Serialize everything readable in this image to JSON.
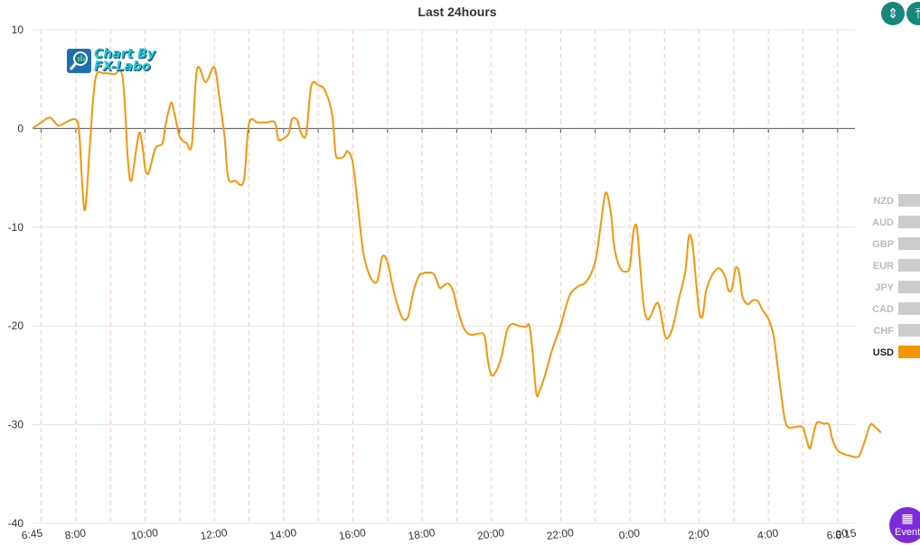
{
  "toolbar": {
    "buttons": [
      {
        "icon": "expand-vertical-icon"
      },
      {
        "icon": "fit-height-icon"
      }
    ]
  },
  "logo": {
    "line1": "Chart By",
    "line2": "FX-Labo"
  },
  "event_button": {
    "label": "Event",
    "icon": "calendar-icon"
  },
  "chart_data": {
    "type": "line",
    "title": "Last 24hours",
    "xlabel": "",
    "ylabel": "",
    "ylim": [
      -40,
      10
    ],
    "yticks": [
      10,
      0,
      -10,
      -20,
      -30,
      -40
    ],
    "xlim": [
      6.75,
      30.5
    ],
    "xticks": [
      {
        "label": "6:45",
        "x": 6.75
      },
      {
        "label": "8:00",
        "x": 8.0
      },
      {
        "label": "10:00",
        "x": 10.0
      },
      {
        "label": "12:00",
        "x": 12.0
      },
      {
        "label": "14:00",
        "x": 14.0
      },
      {
        "label": "16:00",
        "x": 16.0
      },
      {
        "label": "18:00",
        "x": 18.0
      },
      {
        "label": "20:00",
        "x": 20.0
      },
      {
        "label": "22:00",
        "x": 22.0
      },
      {
        "label": "0:00",
        "x": 24.0
      },
      {
        "label": "2:00",
        "x": 26.0
      },
      {
        "label": "4:00",
        "x": 28.0
      },
      {
        "label": "6:00",
        "x": 30.0
      },
      {
        "label": "6:15",
        "x": 30.25
      }
    ],
    "grid": true,
    "legend": {
      "placement": "right",
      "items": [
        {
          "name": "NZD",
          "color": "#cccccc",
          "active": false
        },
        {
          "name": "AUD",
          "color": "#cccccc",
          "active": false
        },
        {
          "name": "GBP",
          "color": "#cccccc",
          "active": false
        },
        {
          "name": "EUR",
          "color": "#cccccc",
          "active": false
        },
        {
          "name": "JPY",
          "color": "#cccccc",
          "active": false
        },
        {
          "name": "CAD",
          "color": "#cccccc",
          "active": false
        },
        {
          "name": "CHF",
          "color": "#cccccc",
          "active": false
        },
        {
          "name": "USD",
          "color": "#f5960a",
          "active": true
        }
      ]
    },
    "series": [
      {
        "name": "USD",
        "color": "#f5960a",
        "points": [
          [
            6.75,
            0
          ],
          [
            7.0,
            0.6
          ],
          [
            7.25,
            1.1
          ],
          [
            7.5,
            0.3
          ],
          [
            7.75,
            0.7
          ],
          [
            8.0,
            0.9
          ],
          [
            8.1,
            -0.5
          ],
          [
            8.25,
            -8.3
          ],
          [
            8.4,
            -2.0
          ],
          [
            8.5,
            3.0
          ],
          [
            8.6,
            5.5
          ],
          [
            8.8,
            5.6
          ],
          [
            9.1,
            5.5
          ],
          [
            9.35,
            5.2
          ],
          [
            9.5,
            -3.0
          ],
          [
            9.6,
            -5.3
          ],
          [
            9.75,
            -2.0
          ],
          [
            9.85,
            -0.4
          ],
          [
            9.95,
            -2.5
          ],
          [
            10.0,
            -4.0
          ],
          [
            10.1,
            -4.5
          ],
          [
            10.3,
            -2.0
          ],
          [
            10.5,
            -1.5
          ],
          [
            10.6,
            0.5
          ],
          [
            10.75,
            2.6
          ],
          [
            10.85,
            1.5
          ],
          [
            11.0,
            -0.8
          ],
          [
            11.2,
            -1.5
          ],
          [
            11.35,
            -1.6
          ],
          [
            11.5,
            6.0
          ],
          [
            11.75,
            4.7
          ],
          [
            12.0,
            6.2
          ],
          [
            12.15,
            3.0
          ],
          [
            12.3,
            -1.0
          ],
          [
            12.4,
            -5.0
          ],
          [
            12.6,
            -5.3
          ],
          [
            12.85,
            -5.3
          ],
          [
            13.0,
            0.5
          ],
          [
            13.25,
            0.6
          ],
          [
            13.5,
            0.6
          ],
          [
            13.75,
            0.6
          ],
          [
            13.85,
            -1.1
          ],
          [
            14.0,
            -1.0
          ],
          [
            14.15,
            -0.5
          ],
          [
            14.25,
            1.0
          ],
          [
            14.4,
            0.8
          ],
          [
            14.5,
            -0.4
          ],
          [
            14.65,
            -0.6
          ],
          [
            14.8,
            4.3
          ],
          [
            15.0,
            4.4
          ],
          [
            15.2,
            3.8
          ],
          [
            15.4,
            1.5
          ],
          [
            15.5,
            -2.5
          ],
          [
            15.6,
            -3.0
          ],
          [
            15.75,
            -2.8
          ],
          [
            15.85,
            -2.3
          ],
          [
            16.0,
            -3.5
          ],
          [
            16.15,
            -8.0
          ],
          [
            16.3,
            -12.5
          ],
          [
            16.5,
            -15.0
          ],
          [
            16.7,
            -15.5
          ],
          [
            16.85,
            -13.0
          ],
          [
            17.0,
            -13.5
          ],
          [
            17.15,
            -16.0
          ],
          [
            17.3,
            -18.0
          ],
          [
            17.45,
            -19.3
          ],
          [
            17.6,
            -19.0
          ],
          [
            17.75,
            -16.5
          ],
          [
            17.9,
            -15.0
          ],
          [
            18.0,
            -14.7
          ],
          [
            18.2,
            -14.6
          ],
          [
            18.35,
            -14.8
          ],
          [
            18.5,
            -16.1
          ],
          [
            18.6,
            -16.0
          ],
          [
            18.75,
            -15.7
          ],
          [
            18.9,
            -16.5
          ],
          [
            19.0,
            -18.0
          ],
          [
            19.2,
            -20.2
          ],
          [
            19.4,
            -20.9
          ],
          [
            19.6,
            -20.8
          ],
          [
            19.8,
            -21.0
          ],
          [
            19.9,
            -23.5
          ],
          [
            20.0,
            -25.0
          ],
          [
            20.15,
            -24.5
          ],
          [
            20.3,
            -23.0
          ],
          [
            20.45,
            -20.5
          ],
          [
            20.6,
            -19.8
          ],
          [
            20.8,
            -20.0
          ],
          [
            21.0,
            -20.1
          ],
          [
            21.1,
            -20.0
          ],
          [
            21.2,
            -23.0
          ],
          [
            21.3,
            -26.9
          ],
          [
            21.4,
            -26.5
          ],
          [
            21.55,
            -25.0
          ],
          [
            21.75,
            -22.5
          ],
          [
            22.0,
            -20.0
          ],
          [
            22.25,
            -17.0
          ],
          [
            22.5,
            -16.0
          ],
          [
            22.75,
            -15.5
          ],
          [
            23.0,
            -13.5
          ],
          [
            23.15,
            -10.0
          ],
          [
            23.3,
            -6.5
          ],
          [
            23.45,
            -8.5
          ],
          [
            23.55,
            -12.0
          ],
          [
            23.7,
            -14.0
          ],
          [
            23.85,
            -14.5
          ],
          [
            24.0,
            -14.0
          ],
          [
            24.1,
            -10.5
          ],
          [
            24.2,
            -10.0
          ],
          [
            24.3,
            -14.0
          ],
          [
            24.4,
            -18.0
          ],
          [
            24.5,
            -19.3
          ],
          [
            24.6,
            -19.0
          ],
          [
            24.75,
            -17.8
          ],
          [
            24.85,
            -18.0
          ],
          [
            25.0,
            -20.8
          ],
          [
            25.1,
            -21.2
          ],
          [
            25.25,
            -20.0
          ],
          [
            25.4,
            -17.5
          ],
          [
            25.6,
            -14.5
          ],
          [
            25.7,
            -11.0
          ],
          [
            25.8,
            -11.5
          ],
          [
            25.9,
            -15.0
          ],
          [
            26.0,
            -18.5
          ],
          [
            26.1,
            -19.0
          ],
          [
            26.2,
            -16.5
          ],
          [
            26.35,
            -15.0
          ],
          [
            26.5,
            -14.3
          ],
          [
            26.6,
            -14.2
          ],
          [
            26.75,
            -15.0
          ],
          [
            26.85,
            -16.4
          ],
          [
            26.95,
            -16.2
          ],
          [
            27.05,
            -14.2
          ],
          [
            27.15,
            -14.5
          ],
          [
            27.25,
            -17.0
          ],
          [
            27.4,
            -17.8
          ],
          [
            27.55,
            -17.4
          ],
          [
            27.7,
            -17.5
          ],
          [
            27.85,
            -18.5
          ],
          [
            28.0,
            -19.3
          ],
          [
            28.15,
            -21.0
          ],
          [
            28.3,
            -25.0
          ],
          [
            28.45,
            -29.0
          ],
          [
            28.55,
            -30.2
          ],
          [
            28.7,
            -30.3
          ],
          [
            28.85,
            -30.2
          ],
          [
            29.0,
            -30.3
          ],
          [
            29.1,
            -31.5
          ],
          [
            29.2,
            -32.4
          ],
          [
            29.3,
            -31.0
          ],
          [
            29.4,
            -29.8
          ],
          [
            29.6,
            -29.9
          ],
          [
            29.75,
            -30.0
          ],
          [
            29.85,
            -31.5
          ],
          [
            30.0,
            -32.6
          ],
          [
            30.2,
            -33.0
          ],
          [
            30.4,
            -33.2
          ],
          [
            30.55,
            -33.3
          ],
          [
            30.65,
            -33.0
          ],
          [
            30.8,
            -31.5
          ],
          [
            30.95,
            -30.0
          ],
          [
            31.1,
            -30.3
          ],
          [
            31.25,
            -30.8
          ]
        ]
      }
    ]
  }
}
